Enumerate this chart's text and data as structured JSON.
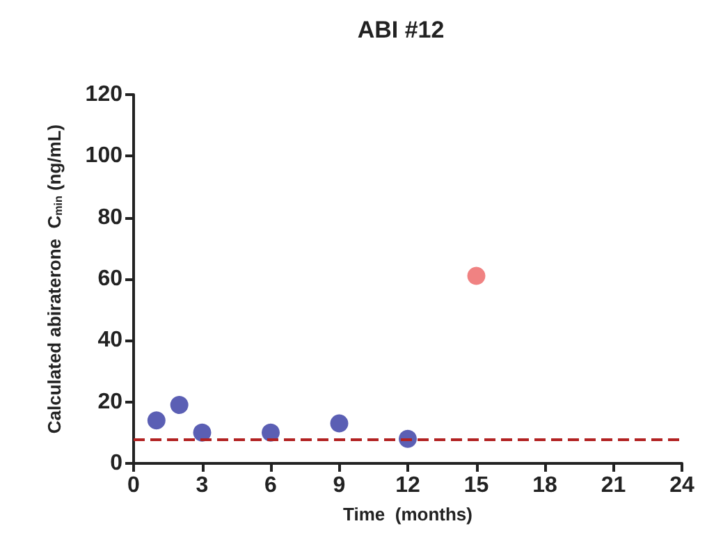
{
  "chart_data": {
    "type": "scatter",
    "title": "ABI #12",
    "xlabel": "Time  (months)",
    "ylabel": "Calculated abiraterone  C$_{min}$ (ng/mL)",
    "series": [
      {
        "color": "#5b5fb4",
        "x": [
          1,
          2,
          3,
          6,
          9,
          12
        ],
        "values": [
          14,
          19,
          10,
          10,
          13,
          8
        ]
      },
      {
        "color": "#f08282",
        "x": [
          15
        ],
        "values": [
          61
        ]
      }
    ],
    "xlim": [
      0,
      24
    ],
    "xticks": [
      0,
      3,
      6,
      9,
      12,
      15,
      18,
      21,
      24
    ],
    "ylim": [
      0,
      120
    ],
    "yticks": [
      0,
      20,
      40,
      60,
      80,
      100,
      120
    ],
    "ref_lines": [
      {
        "axis": "y",
        "value": 8,
        "color": "#b22222",
        "line_style": "dashed"
      }
    ],
    "grid": false,
    "marker": "circle"
  }
}
